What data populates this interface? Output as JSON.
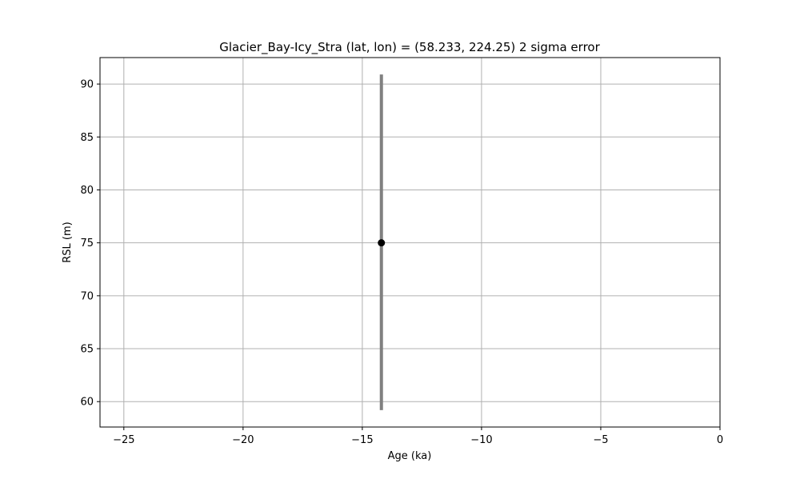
{
  "chart_data": {
    "type": "scatter",
    "title": "Glacier_Bay-Icy_Stra (lat, lon) = (58.233, 224.25)  2 sigma error",
    "xlabel": "Age (ka)",
    "ylabel": "RSL (m)",
    "xlim": [
      -26,
      0
    ],
    "ylim": [
      57.6,
      92.5
    ],
    "xticks": [
      -25,
      -20,
      -15,
      -10,
      -5,
      0
    ],
    "xtick_labels": [
      "−25",
      "−20",
      "−15",
      "−10",
      "−5",
      "0"
    ],
    "yticks": [
      60,
      65,
      70,
      75,
      80,
      85,
      90
    ],
    "ytick_labels": [
      "60",
      "65",
      "70",
      "75",
      "80",
      "85",
      "90"
    ],
    "grid": true,
    "points": [
      {
        "x": -14.2,
        "y": 75.0,
        "yerr_low": 59.2,
        "yerr_high": 90.9
      }
    ],
    "colors": {
      "point": "#000000",
      "errorbar": "#808080",
      "grid": "#b0b0b0",
      "axes": "#000000"
    }
  }
}
